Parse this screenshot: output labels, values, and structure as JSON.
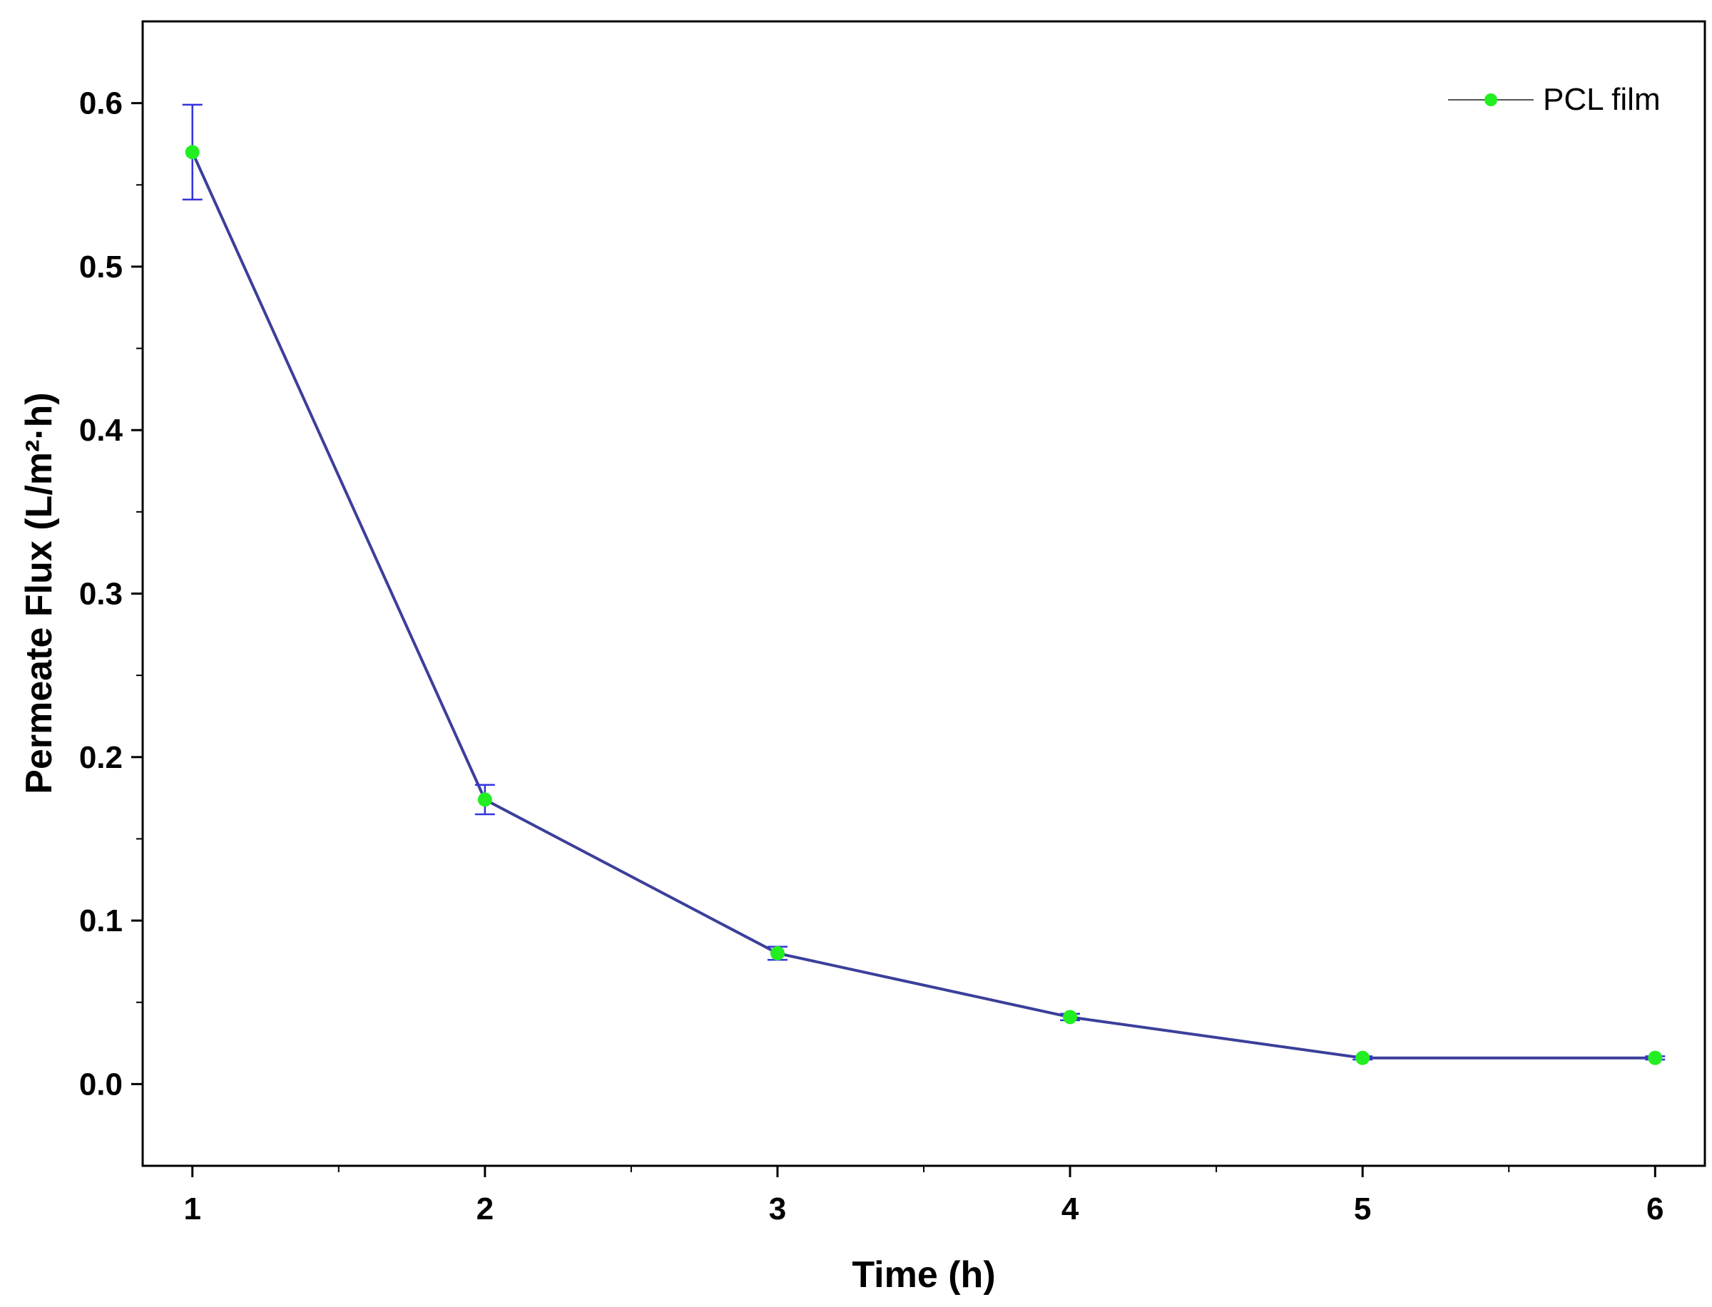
{
  "chart_data": {
    "type": "line",
    "xlabel": "Time (h)",
    "ylabel": "Permeate Flux (L/m²·h)",
    "xlim": [
      0.83,
      6.17
    ],
    "ylim": [
      -0.05,
      0.65
    ],
    "x_ticks": [
      1,
      2,
      3,
      4,
      5,
      6
    ],
    "x_tick_labels": [
      "1",
      "2",
      "3",
      "4",
      "5",
      "6"
    ],
    "y_ticks": [
      0.0,
      0.1,
      0.2,
      0.3,
      0.4,
      0.5,
      0.6
    ],
    "y_tick_labels": [
      "0.0",
      "0.1",
      "0.2",
      "0.3",
      "0.4",
      "0.5",
      "0.6"
    ],
    "grid": false,
    "legend": {
      "position": "top-right",
      "entries": [
        "PCL film"
      ]
    },
    "series": [
      {
        "name": "PCL film",
        "x": [
          1,
          2,
          3,
          4,
          5,
          6
        ],
        "y": [
          0.57,
          0.174,
          0.08,
          0.041,
          0.016,
          0.016
        ],
        "error": [
          0.029,
          0.009,
          0.004,
          0.002,
          0.001,
          0.001
        ],
        "line_color": "#3b3f9a",
        "marker_color": "#22ee22",
        "error_color": "#3333dd"
      }
    ]
  }
}
